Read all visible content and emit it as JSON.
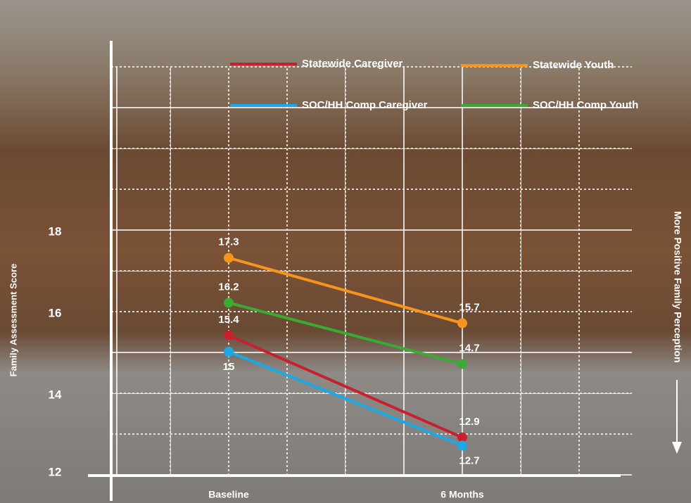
{
  "chart_data": {
    "type": "line",
    "y_label": "Family Assessment Score",
    "annotation": "More Positive Family Perception",
    "categories": [
      "Baseline",
      "6 Months"
    ],
    "series": [
      {
        "name": "Statewide Caregiver",
        "color": "#c7202f",
        "values": [
          15.4,
          12.9
        ]
      },
      {
        "name": "Statewide Youth",
        "color": "#f7941d",
        "values": [
          17.3,
          15.7
        ]
      },
      {
        "name": "SOC/HH Comp Caregiver",
        "color": "#1ba9e6",
        "values": [
          15,
          12.7
        ]
      },
      {
        "name": "SOC/HH Comp Youth",
        "color": "#3aaa35",
        "values": [
          16.2,
          14.7
        ]
      }
    ],
    "ylim": [
      12,
      22
    ],
    "yticks": [
      12,
      14,
      16,
      18
    ]
  }
}
